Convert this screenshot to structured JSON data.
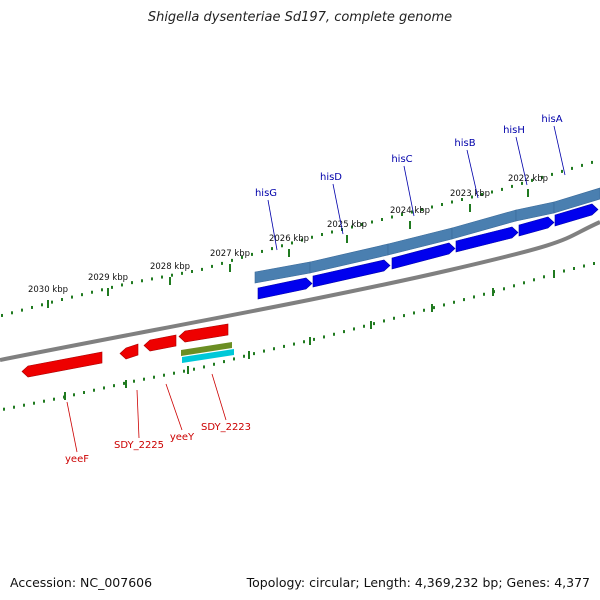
{
  "title": "Shigella dysenteriae Sd197, complete genome",
  "footer": {
    "accession": "Accession: NC_007606",
    "summary": "Topology: circular; Length: 4,369,232 bp; Genes: 4,377"
  },
  "colors": {
    "forward_gene": "#0000ee",
    "reverse_gene": "#ee0000",
    "forward_gene_label": "#0000aa",
    "reverse_gene_label": "#cc0000",
    "operon_bar": "#4a7fb0",
    "backbone": "#808080",
    "ticks": "#207a20",
    "feature_olive": "#6b8e23",
    "feature_cyan": "#00c8d8"
  },
  "scale_labels": [
    "2022 kbp",
    "2023 kbp",
    "2024 kbp",
    "2025 kbp",
    "2026 kbp",
    "2027 kbp",
    "2028 kbp",
    "2029 kbp",
    "2030 kbp"
  ],
  "forward_genes": [
    "hisA",
    "hisH",
    "hisB",
    "hisC",
    "hisD",
    "hisG"
  ],
  "reverse_genes": [
    "SDY_2223",
    "yeeY",
    "SDY_2225",
    "yeeF"
  ]
}
